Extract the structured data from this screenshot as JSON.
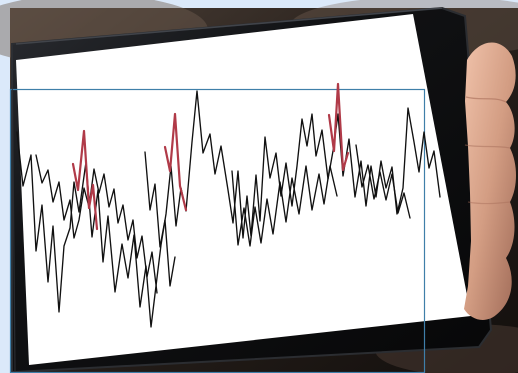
{
  "scene": {
    "description_tags": [
      "tablet-device",
      "zigzag-line-pattern",
      "hand"
    ],
    "colors": {
      "page_background": "#dbe9fa",
      "room_dark": "#221b17",
      "room_warm": "#6e5b4b",
      "tablet_body": "#111214",
      "screen": "#ffffff",
      "stroke_black": "#111111",
      "stroke_red": "#b03a48",
      "skin": "#d39d83",
      "selection_outline": "#3f7fa9"
    }
  }
}
